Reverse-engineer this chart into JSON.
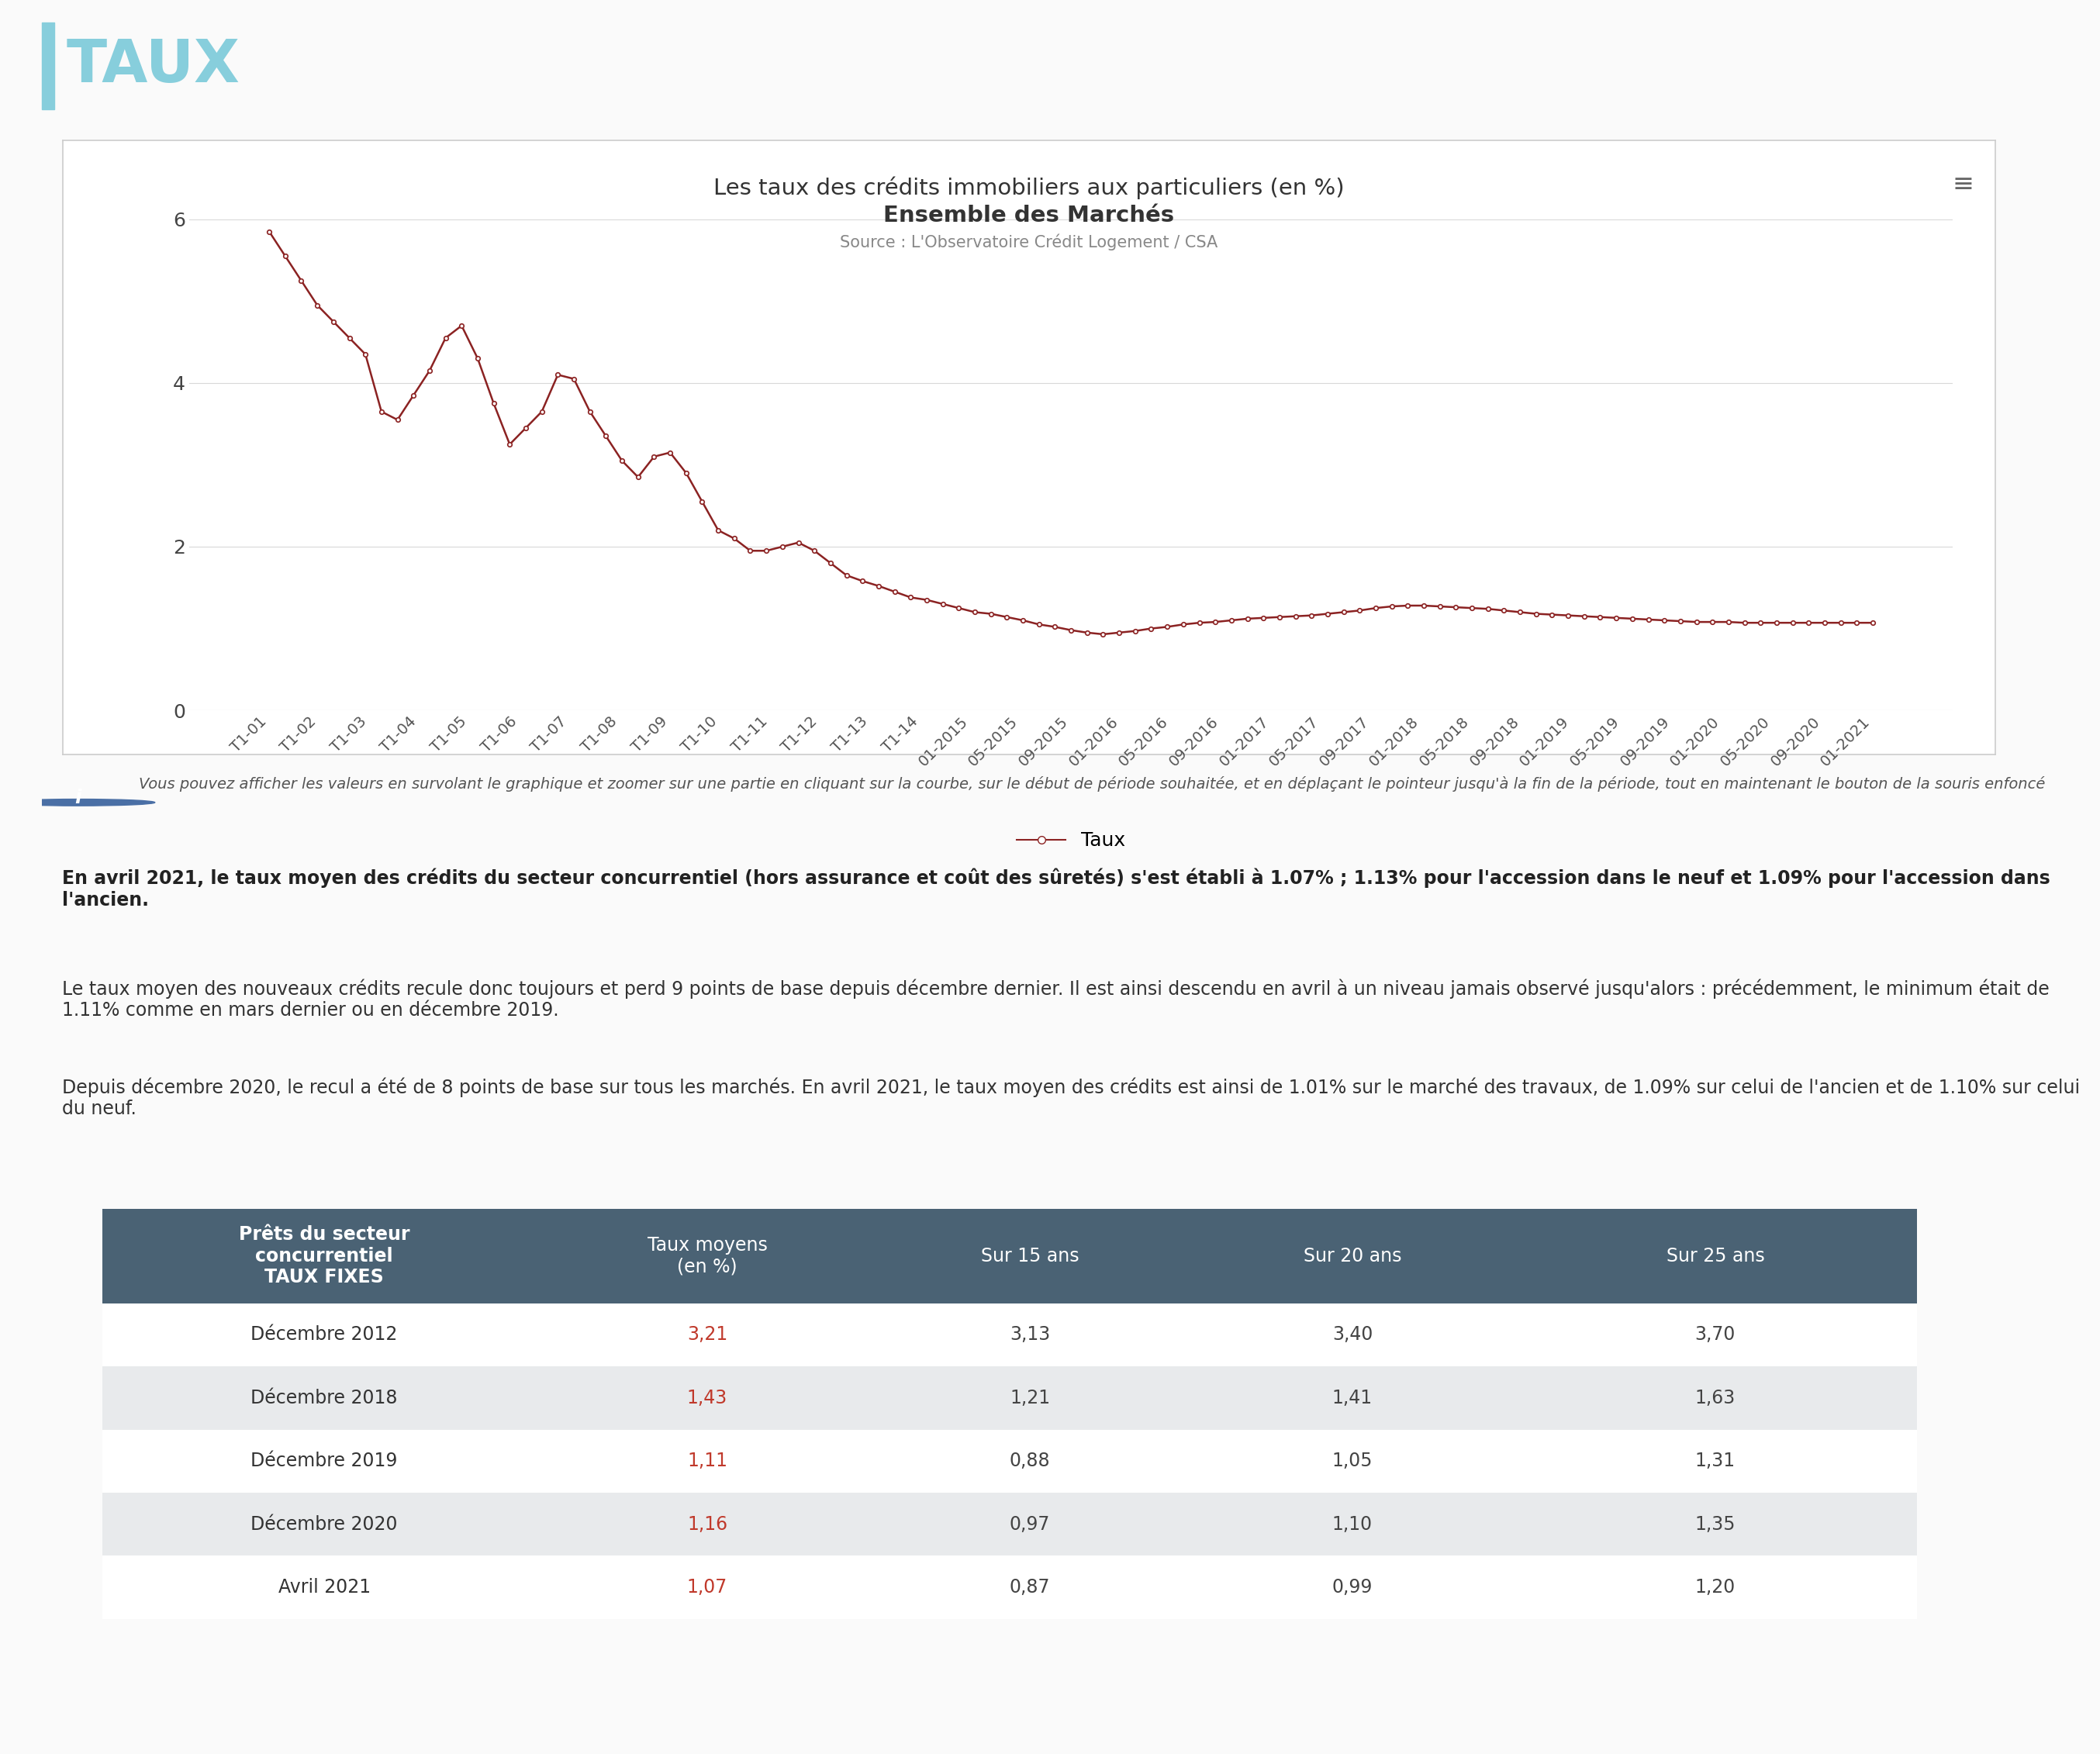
{
  "chart_title_line1": "Les taux des crédits immobiliers aux particuliers (en %)",
  "chart_title_line2": "Ensemble des Marchés",
  "chart_source": "Source : L'Observatoire Crédit Logement / CSA",
  "legend_label": "Taux",
  "ylim": [
    0,
    6
  ],
  "yticks": [
    0,
    2,
    4,
    6
  ],
  "line_color": "#8B2222",
  "marker_color": "#8B2222",
  "background_color": "#fafafa",
  "chart_bg": "#ffffff",
  "chart_border_color": "#cccccc",
  "header_color": "#87CEDC",
  "info_text": "Vous pouvez afficher les valeurs en survolant le graphique et zoomer sur une partie en cliquant sur la courbe, sur le début de période souhaitée, et en déplaçant le pointeur jusqu'à la fin de la période, tout en maintenant le bouton de la souris enfoncé",
  "bold_text": "En avril 2021, le taux moyen des crédits du secteur concurrentiel (hors assurance et coût des sûretés) s'est établi à 1.07% ; 1.13% pour l'accession dans le neuf et 1.09% pour l'accession dans l'ancien.",
  "body_text1": "Le taux moyen des nouveaux crédits recule donc toujours et perd 9 points de base depuis décembre dernier. Il est ainsi descendu en avril à un niveau jamais observé jusqu'alors : précédemment, le minimum était de 1.11% comme en mars dernier ou en décembre 2019.",
  "body_text2": "Depuis décembre 2020, le recul a été de 8 points de base sur tous les marchés. En avril 2021, le taux moyen des crédits est ainsi de 1.01% sur le marché des travaux, de 1.09% sur celui de l'ancien et de 1.10% sur celui du neuf.",
  "table_header_bg": "#4a6274",
  "table_header_color": "#ffffff",
  "table_alt_row_bg": "#e8eaec",
  "table_row_bg": "#ffffff",
  "table_col0": "Prêts du secteur\nconcurrentiel\nTAUX FIXES",
  "table_cols": [
    "Taux moyens\n(en %)",
    "Sur 15 ans",
    "Sur 20 ans",
    "Sur 25 ans"
  ],
  "table_rows": [
    {
      "label": "Décembre 2012",
      "values": [
        "3,21",
        "3,13",
        "3,40",
        "3,70"
      ],
      "red_col": 0
    },
    {
      "label": "Décembre 2018",
      "values": [
        "1,43",
        "1,21",
        "1,41",
        "1,63"
      ],
      "red_col": 0,
      "alt": true
    },
    {
      "label": "Décembre 2019",
      "values": [
        "1,11",
        "0,88",
        "1,05",
        "1,31"
      ],
      "red_col": 0
    },
    {
      "label": "Décembre 2020",
      "values": [
        "1,16",
        "0,97",
        "1,10",
        "1,35"
      ],
      "red_col": 0,
      "alt": true
    },
    {
      "label": "Avril 2021",
      "values": [
        "1,07",
        "0,87",
        "0,99",
        "1,20"
      ],
      "red_col": 0
    }
  ],
  "x_labels": [
    "T1-01",
    "T1-02",
    "T1-03",
    "T1-04",
    "T1-05",
    "T1-06",
    "T1-07",
    "T1-08",
    "T1-09",
    "T1-10",
    "T1-11",
    "T1-12",
    "T1-13",
    "T1-14",
    "01-2015",
    "05-2015",
    "09-2015",
    "01-2016",
    "05-2016",
    "09-2016",
    "01-2017",
    "05-2017",
    "09-2017",
    "01-2018",
    "05-2018",
    "09-2018",
    "01-2019",
    "05-2019",
    "09-2019",
    "01-2020",
    "05-2020",
    "09-2020",
    "01-2021"
  ],
  "y_values": [
    5.85,
    5.55,
    5.25,
    4.95,
    4.75,
    4.55,
    4.35,
    3.65,
    3.55,
    3.85,
    4.15,
    4.55,
    4.7,
    4.3,
    3.75,
    3.25,
    3.45,
    3.65,
    4.1,
    4.05,
    3.65,
    3.35,
    3.05,
    2.85,
    3.1,
    3.15,
    2.9,
    2.55,
    2.2,
    2.1,
    1.95,
    1.95,
    2.0,
    2.05,
    1.95,
    1.8,
    1.65,
    1.58,
    1.52,
    1.45,
    1.38,
    1.35,
    1.3,
    1.25,
    1.2,
    1.18,
    1.14,
    1.1,
    1.05,
    1.02,
    0.98,
    0.95,
    0.93,
    0.95,
    0.97,
    1.0,
    1.02,
    1.05,
    1.07,
    1.08,
    1.1,
    1.12,
    1.13,
    1.14,
    1.15,
    1.16,
    1.18,
    1.2,
    1.22,
    1.25,
    1.27,
    1.28,
    1.28,
    1.27,
    1.26,
    1.25,
    1.24,
    1.22,
    1.2,
    1.18,
    1.17,
    1.16,
    1.15,
    1.14,
    1.13,
    1.12,
    1.11,
    1.1,
    1.09,
    1.08,
    1.08,
    1.08,
    1.07,
    1.07,
    1.07,
    1.07,
    1.07,
    1.07,
    1.07,
    1.07,
    1.07
  ]
}
